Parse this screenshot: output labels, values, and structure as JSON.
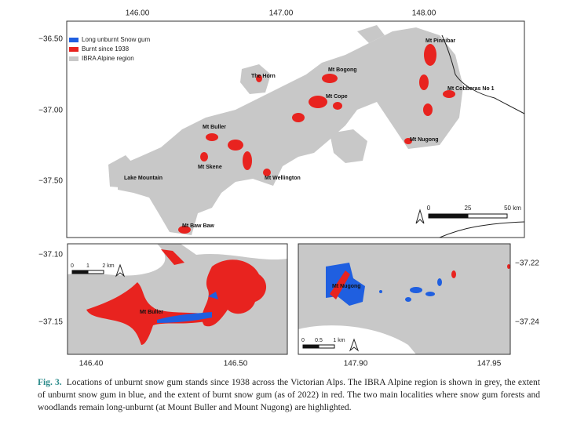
{
  "main_map": {
    "lon_ticks": [
      "146.00",
      "147.00",
      "148.00"
    ],
    "lat_ticks": [
      "−36.50",
      "−37.00",
      "−37.50"
    ],
    "legend": [
      "Long unburnt Snow gum",
      "Burnt since 1938",
      "IBRA Alpine region"
    ],
    "places": [
      "Mt Pinnibar",
      "Mt Bogong",
      "The Horn",
      "Mt Cope",
      "Mt Cobberas No 1",
      "Mt Buller",
      "Mt Nugong",
      "Mt Skene",
      "Lake Mountain",
      "Mt Wellington",
      "Mt Baw Baw"
    ],
    "scale_bar": [
      "0",
      "25",
      "50 km"
    ]
  },
  "inset_buller": {
    "lat_ticks": [
      "−37.10",
      "−37.15"
    ],
    "lon_ticks": [
      "146.40",
      "146.50"
    ],
    "place": "Mt Buller",
    "scale_bar": [
      "0",
      "1",
      "2 km"
    ]
  },
  "inset_nugong": {
    "lat_ticks": [
      "−37.22",
      "−37.24"
    ],
    "lon_ticks": [
      "147.90",
      "147.95"
    ],
    "place": "Mt Nugong",
    "scale_bar": [
      "0",
      "0.5",
      "1 km"
    ]
  },
  "caption": {
    "label": "Fig. 3.",
    "text": "Locations of unburnt snow gum stands since 1938 across the Victorian Alps. The IBRA Alpine region is shown in grey, the extent of unburnt snow gum in blue, and the extent of burnt snow gum (as of 2022) in red. The two main localities where snow gum forests and woodlands remain long-unburnt (at Mount Buller and Mount Nugong) are highlighted."
  }
}
